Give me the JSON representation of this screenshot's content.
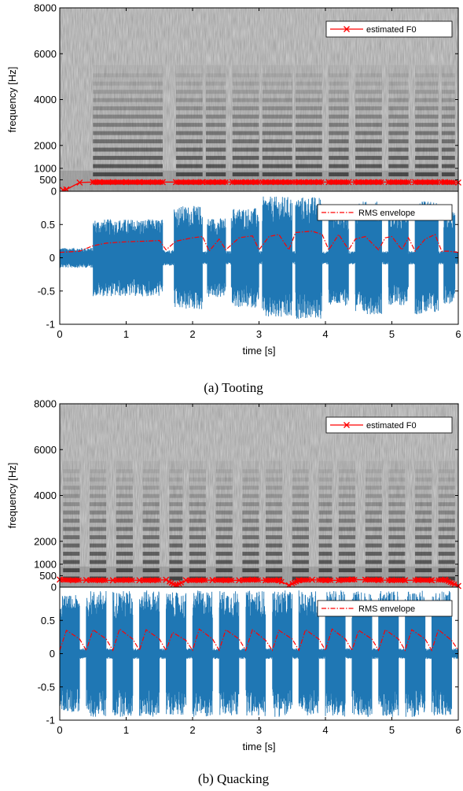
{
  "chart_data": [
    {
      "panel": "a",
      "caption": "(a) Tooting",
      "spectrogram": {
        "type": "heatmap",
        "ylabel": "frequency [Hz]",
        "ylim": [
          0,
          8000
        ],
        "yticks": [
          0,
          500,
          1000,
          2000,
          4000,
          6000,
          8000
        ],
        "xlim": [
          0,
          6
        ],
        "colormap": "grayscale",
        "harmonic_segments": [
          [
            0.5,
            1.55
          ],
          [
            1.75,
            2.15
          ],
          [
            2.2,
            2.5
          ],
          [
            2.6,
            3.0
          ],
          [
            3.05,
            3.5
          ],
          [
            3.55,
            3.95
          ],
          [
            4.05,
            4.35
          ],
          [
            4.45,
            4.85
          ],
          [
            4.95,
            5.25
          ],
          [
            5.35,
            5.7
          ],
          [
            5.75,
            5.95
          ]
        ],
        "legend": {
          "label": "estimated F0",
          "placement": "top-right"
        },
        "f0_series": {
          "name": "estimated F0",
          "color": "#ff0000",
          "x": [
            0.05,
            0.1,
            0.3,
            0.5,
            0.6,
            0.8,
            1.0,
            1.2,
            1.4,
            1.55,
            1.75,
            1.9,
            2.05,
            2.15,
            2.3,
            2.45,
            2.6,
            2.8,
            2.95,
            3.1,
            3.25,
            3.4,
            3.6,
            3.75,
            3.9,
            4.05,
            4.2,
            4.35,
            4.5,
            4.65,
            4.8,
            4.95,
            5.1,
            5.25,
            5.35,
            5.5,
            5.65,
            5.8,
            6.0
          ],
          "y": [
            50,
            80,
            380,
            400,
            400,
            400,
            400,
            400,
            400,
            400,
            400,
            400,
            400,
            400,
            400,
            400,
            400,
            400,
            400,
            400,
            400,
            400,
            400,
            400,
            400,
            400,
            400,
            400,
            400,
            400,
            400,
            400,
            400,
            400,
            400,
            400,
            400,
            400,
            380
          ]
        }
      },
      "waveform": {
        "type": "area",
        "xlabel": "time [s]",
        "xlim": [
          0,
          6
        ],
        "xticks": [
          0,
          1,
          2,
          3,
          4,
          5,
          6
        ],
        "ylim": [
          -1,
          1
        ],
        "yticks": [
          -1,
          -0.5,
          0,
          0.5
        ],
        "waveform_color": "#1f77b4",
        "legend": {
          "label": "RMS envelope",
          "placement": "top-right"
        },
        "envelope_x": [
          0,
          0.3,
          0.5,
          0.7,
          1.0,
          1.3,
          1.5,
          1.6,
          1.75,
          2.0,
          2.15,
          2.25,
          2.4,
          2.5,
          2.7,
          2.9,
          3.0,
          3.15,
          3.3,
          3.45,
          3.55,
          3.8,
          3.95,
          4.05,
          4.2,
          4.35,
          4.45,
          4.6,
          4.8,
          4.9,
          5.0,
          5.15,
          5.25,
          5.35,
          5.5,
          5.65,
          5.75,
          5.85,
          6.0
        ],
        "envelope_y": [
          0.08,
          0.1,
          0.18,
          0.22,
          0.24,
          0.25,
          0.26,
          0.12,
          0.25,
          0.3,
          0.32,
          0.1,
          0.28,
          0.12,
          0.3,
          0.33,
          0.12,
          0.32,
          0.35,
          0.12,
          0.38,
          0.4,
          0.35,
          0.12,
          0.35,
          0.12,
          0.28,
          0.32,
          0.12,
          0.3,
          0.32,
          0.12,
          0.3,
          0.1,
          0.28,
          0.35,
          0.1,
          0.1,
          0.08
        ],
        "segments": [
          {
            "t0": 0.0,
            "t1": 0.5,
            "amp": 0.15
          },
          {
            "t0": 0.5,
            "t1": 1.55,
            "amp": 0.58
          },
          {
            "t0": 1.55,
            "t1": 1.72,
            "amp": 0.12
          },
          {
            "t0": 1.72,
            "t1": 2.15,
            "amp": 0.78
          },
          {
            "t0": 2.15,
            "t1": 2.22,
            "amp": 0.1
          },
          {
            "t0": 2.22,
            "t1": 2.5,
            "amp": 0.6
          },
          {
            "t0": 2.5,
            "t1": 2.58,
            "amp": 0.1
          },
          {
            "t0": 2.58,
            "t1": 3.0,
            "amp": 0.75
          },
          {
            "t0": 3.0,
            "t1": 3.05,
            "amp": 0.1
          },
          {
            "t0": 3.05,
            "t1": 3.5,
            "amp": 0.92
          },
          {
            "t0": 3.5,
            "t1": 3.55,
            "amp": 0.1
          },
          {
            "t0": 3.55,
            "t1": 3.95,
            "amp": 0.92
          },
          {
            "t0": 3.95,
            "t1": 4.05,
            "amp": 0.1
          },
          {
            "t0": 4.05,
            "t1": 4.35,
            "amp": 0.72
          },
          {
            "t0": 4.35,
            "t1": 4.45,
            "amp": 0.1
          },
          {
            "t0": 4.45,
            "t1": 4.85,
            "amp": 0.85
          },
          {
            "t0": 4.85,
            "t1": 4.95,
            "amp": 0.1
          },
          {
            "t0": 4.95,
            "t1": 5.25,
            "amp": 0.72
          },
          {
            "t0": 5.25,
            "t1": 5.35,
            "amp": 0.1
          },
          {
            "t0": 5.35,
            "t1": 5.7,
            "amp": 0.85
          },
          {
            "t0": 5.7,
            "t1": 5.78,
            "amp": 0.1
          },
          {
            "t0": 5.78,
            "t1": 5.95,
            "amp": 0.7
          },
          {
            "t0": 5.95,
            "t1": 6.0,
            "amp": 0.1
          }
        ]
      }
    },
    {
      "panel": "b",
      "caption": "(b) Quacking",
      "spectrogram": {
        "type": "heatmap",
        "ylabel": "frequency [Hz]",
        "ylim": [
          0,
          8000
        ],
        "yticks": [
          0,
          500,
          1000,
          2000,
          4000,
          6000,
          8000
        ],
        "xlim": [
          0,
          6
        ],
        "colormap": "grayscale",
        "harmonic_segments": [
          [
            0.05,
            0.3
          ],
          [
            0.45,
            0.7
          ],
          [
            0.85,
            1.1
          ],
          [
            1.25,
            1.5
          ],
          [
            1.65,
            1.85
          ],
          [
            1.95,
            2.2
          ],
          [
            2.35,
            2.6
          ],
          [
            2.75,
            3.0
          ],
          [
            3.1,
            3.35
          ],
          [
            3.5,
            3.75
          ],
          [
            3.9,
            4.1
          ],
          [
            4.2,
            4.45
          ],
          [
            4.6,
            4.85
          ],
          [
            4.95,
            5.2
          ],
          [
            5.35,
            5.6
          ],
          [
            5.7,
            5.95
          ]
        ],
        "legend": {
          "label": "estimated F0",
          "placement": "top-right"
        },
        "f0_series": {
          "name": "estimated F0",
          "color": "#ff0000",
          "x": [
            0.0,
            0.2,
            0.4,
            0.6,
            0.8,
            1.0,
            1.2,
            1.4,
            1.6,
            1.75,
            1.9,
            2.1,
            2.3,
            2.5,
            2.7,
            2.9,
            3.1,
            3.3,
            3.45,
            3.6,
            3.8,
            4.0,
            4.2,
            4.4,
            4.6,
            4.8,
            5.0,
            5.2,
            5.4,
            5.6,
            5.8,
            6.0
          ],
          "y": [
            330,
            300,
            310,
            300,
            300,
            310,
            300,
            300,
            320,
            60,
            300,
            300,
            310,
            300,
            300,
            320,
            300,
            300,
            80,
            300,
            320,
            300,
            300,
            330,
            320,
            310,
            300,
            300,
            310,
            300,
            320,
            50
          ]
        }
      },
      "waveform": {
        "type": "area",
        "xlabel": "time [s]",
        "xlim": [
          0,
          6
        ],
        "xticks": [
          0,
          1,
          2,
          3,
          4,
          5,
          6
        ],
        "ylim": [
          -1,
          1
        ],
        "yticks": [
          -1,
          -0.5,
          0,
          0.5
        ],
        "waveform_color": "#1f77b4",
        "legend": {
          "label": "RMS envelope",
          "placement": "top-right"
        },
        "envelope_x": [
          0.0,
          0.1,
          0.3,
          0.4,
          0.5,
          0.7,
          0.8,
          0.9,
          1.1,
          1.2,
          1.3,
          1.5,
          1.6,
          1.7,
          1.9,
          2.0,
          2.1,
          2.3,
          2.4,
          2.5,
          2.7,
          2.8,
          2.9,
          3.1,
          3.2,
          3.3,
          3.5,
          3.6,
          3.7,
          3.9,
          4.0,
          4.1,
          4.3,
          4.4,
          4.5,
          4.7,
          4.8,
          4.9,
          5.1,
          5.2,
          5.3,
          5.5,
          5.6,
          5.7,
          5.9,
          6.0
        ],
        "envelope_y": [
          0.05,
          0.35,
          0.22,
          0.05,
          0.36,
          0.22,
          0.05,
          0.37,
          0.22,
          0.05,
          0.36,
          0.22,
          0.05,
          0.32,
          0.2,
          0.05,
          0.37,
          0.22,
          0.05,
          0.36,
          0.22,
          0.05,
          0.36,
          0.2,
          0.05,
          0.35,
          0.22,
          0.05,
          0.36,
          0.22,
          0.05,
          0.37,
          0.22,
          0.05,
          0.35,
          0.22,
          0.05,
          0.36,
          0.22,
          0.05,
          0.36,
          0.22,
          0.05,
          0.36,
          0.2,
          0.05
        ],
        "segments": [
          {
            "t0": 0.0,
            "t1": 0.3,
            "amp": 0.88
          },
          {
            "t0": 0.3,
            "t1": 0.4,
            "amp": 0.08
          },
          {
            "t0": 0.4,
            "t1": 0.7,
            "amp": 0.95
          },
          {
            "t0": 0.7,
            "t1": 0.8,
            "amp": 0.08
          },
          {
            "t0": 0.8,
            "t1": 1.1,
            "amp": 0.95
          },
          {
            "t0": 1.1,
            "t1": 1.2,
            "amp": 0.08
          },
          {
            "t0": 1.2,
            "t1": 1.5,
            "amp": 0.95
          },
          {
            "t0": 1.5,
            "t1": 1.6,
            "amp": 0.08
          },
          {
            "t0": 1.6,
            "t1": 1.9,
            "amp": 0.92
          },
          {
            "t0": 1.9,
            "t1": 2.0,
            "amp": 0.08
          },
          {
            "t0": 2.0,
            "t1": 2.3,
            "amp": 0.95
          },
          {
            "t0": 2.3,
            "t1": 2.4,
            "amp": 0.08
          },
          {
            "t0": 2.4,
            "t1": 2.7,
            "amp": 0.95
          },
          {
            "t0": 2.7,
            "t1": 2.8,
            "amp": 0.08
          },
          {
            "t0": 2.8,
            "t1": 3.1,
            "amp": 0.95
          },
          {
            "t0": 3.1,
            "t1": 3.2,
            "amp": 0.08
          },
          {
            "t0": 3.2,
            "t1": 3.5,
            "amp": 0.95
          },
          {
            "t0": 3.5,
            "t1": 3.6,
            "amp": 0.08
          },
          {
            "t0": 3.6,
            "t1": 3.9,
            "amp": 0.95
          },
          {
            "t0": 3.9,
            "t1": 4.0,
            "amp": 0.08
          },
          {
            "t0": 4.0,
            "t1": 4.3,
            "amp": 0.95
          },
          {
            "t0": 4.3,
            "t1": 4.4,
            "amp": 0.08
          },
          {
            "t0": 4.4,
            "t1": 4.7,
            "amp": 0.95
          },
          {
            "t0": 4.7,
            "t1": 4.8,
            "amp": 0.08
          },
          {
            "t0": 4.8,
            "t1": 5.1,
            "amp": 0.95
          },
          {
            "t0": 5.1,
            "t1": 5.2,
            "amp": 0.08
          },
          {
            "t0": 5.2,
            "t1": 5.5,
            "amp": 0.95
          },
          {
            "t0": 5.5,
            "t1": 5.6,
            "amp": 0.08
          },
          {
            "t0": 5.6,
            "t1": 5.9,
            "amp": 0.95
          },
          {
            "t0": 5.9,
            "t1": 6.0,
            "amp": 0.08
          }
        ]
      }
    }
  ]
}
